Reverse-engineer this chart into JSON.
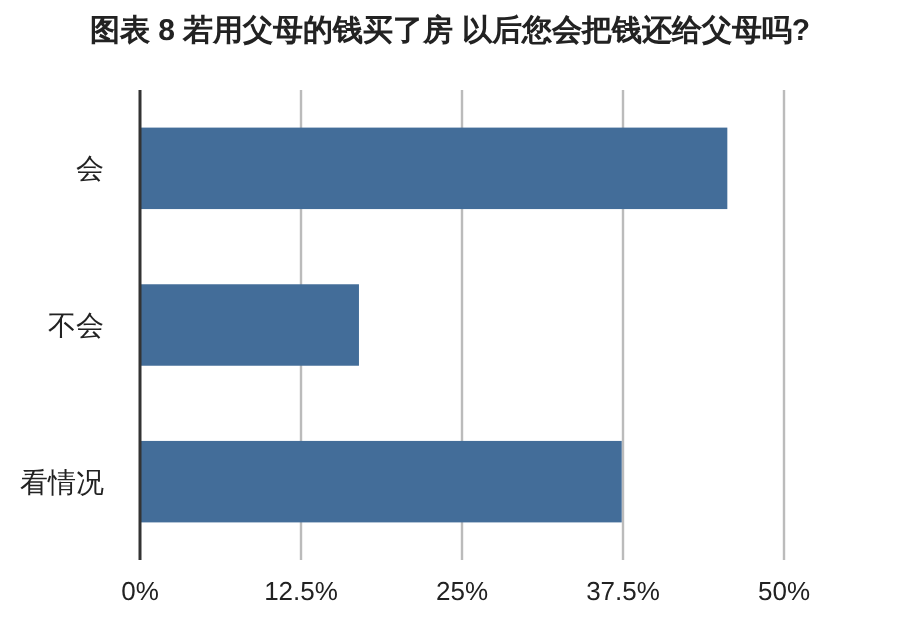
{
  "chart_data": {
    "type": "bar",
    "orientation": "horizontal",
    "title": "图表 8 若用父母的钱买了房 以后您会把钱还给父母吗?",
    "categories": [
      "会",
      "不会",
      "看情况"
    ],
    "values": [
      45.6,
      17.0,
      37.4
    ],
    "color": "#436d99",
    "xlim": [
      0,
      50
    ],
    "xticks": [
      {
        "value": 0,
        "label": "0%"
      },
      {
        "value": 12.5,
        "label": "12.5%"
      },
      {
        "value": 25,
        "label": "25%"
      },
      {
        "value": 37.5,
        "label": "37.5%"
      },
      {
        "value": 50,
        "label": "50%"
      }
    ],
    "grid": "x"
  }
}
